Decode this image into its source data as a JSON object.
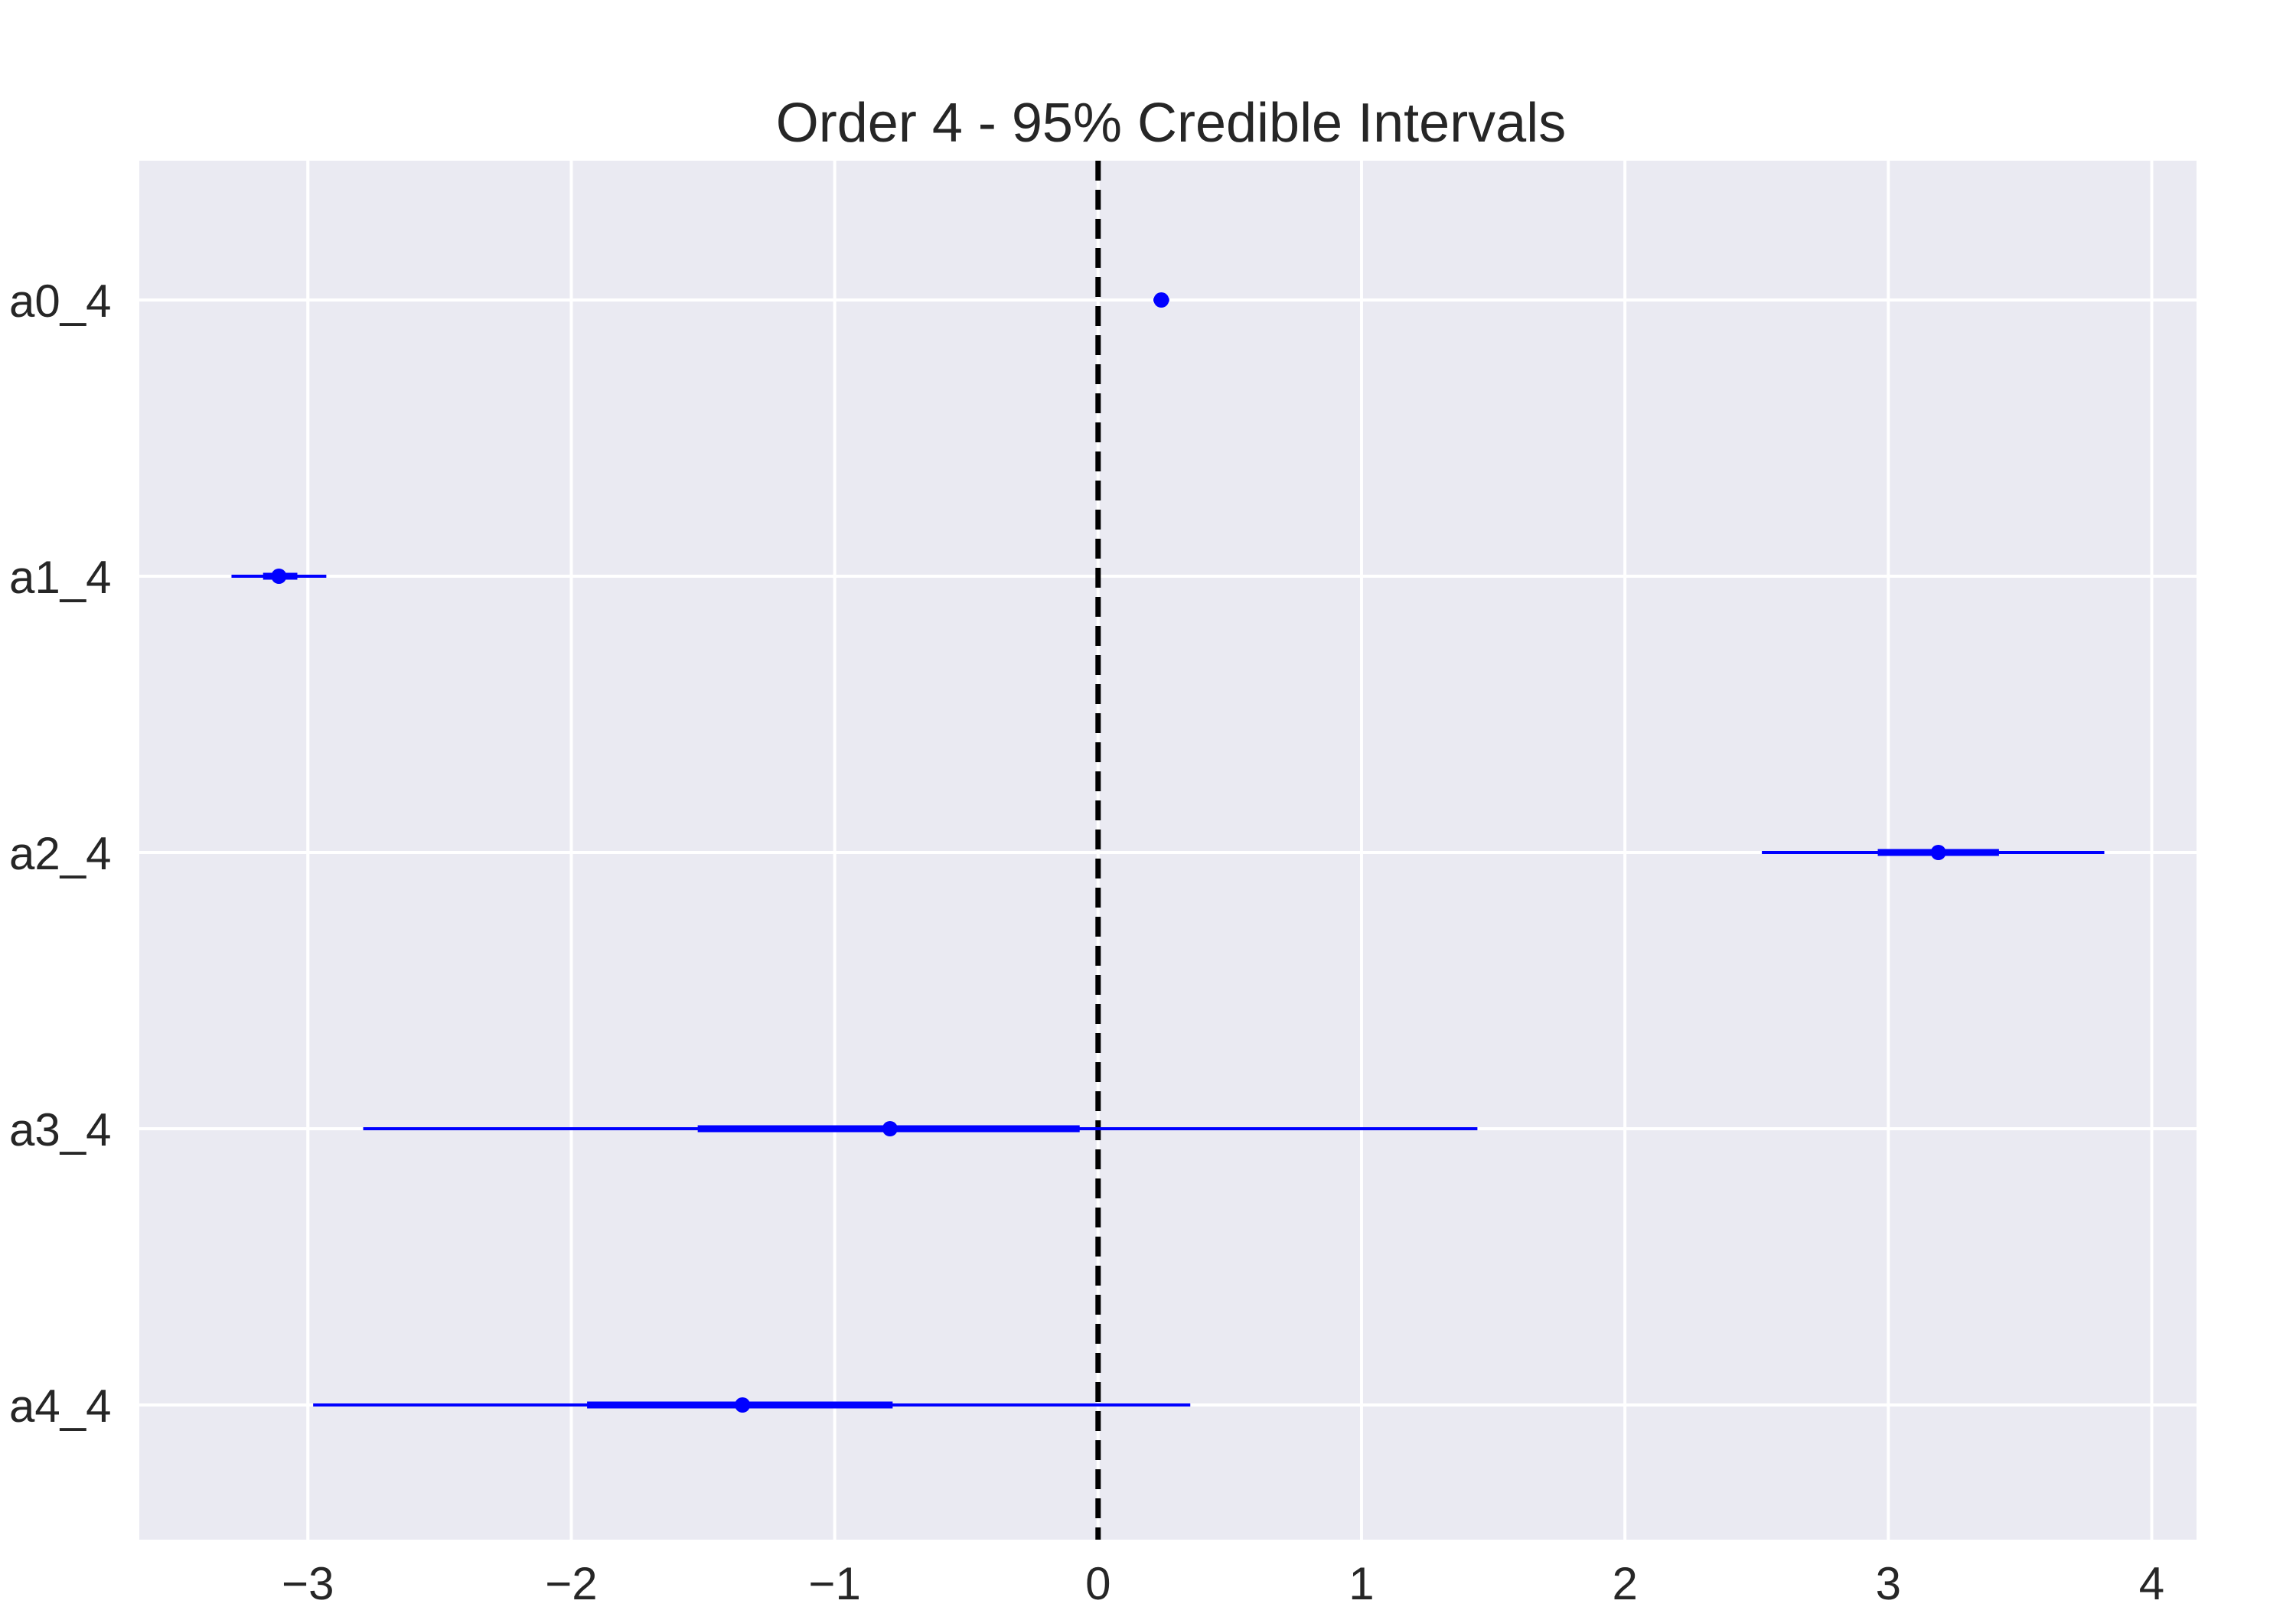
{
  "chart_data": {
    "type": "forest",
    "title": "Order 4 - 95% Credible Intervals",
    "xlabel": "",
    "ylabel": "",
    "xlim": [
      -3.64,
      4.17
    ],
    "xticks": [
      -3,
      -2,
      -1,
      0,
      1,
      2,
      3,
      4
    ],
    "xtick_labels": [
      "−3",
      "−2",
      "−1",
      "0",
      "1",
      "2",
      "3",
      "4"
    ],
    "reference_line": {
      "x": 0,
      "style": "dashed",
      "color": "#000000"
    },
    "grid": true,
    "series": [
      {
        "name": "a0_4",
        "median": 0.24,
        "hdi_50": [
          0.22,
          0.26
        ],
        "hdi_95": [
          0.21,
          0.27
        ]
      },
      {
        "name": "a1_4",
        "median": -3.11,
        "hdi_50": [
          -3.17,
          -3.04
        ],
        "hdi_95": [
          -3.29,
          -2.93
        ]
      },
      {
        "name": "a2_4",
        "median": 3.19,
        "hdi_50": [
          2.96,
          3.42
        ],
        "hdi_95": [
          2.52,
          3.82
        ]
      },
      {
        "name": "a3_4",
        "median": -0.79,
        "hdi_50": [
          -1.52,
          -0.07
        ],
        "hdi_95": [
          -2.79,
          1.44
        ]
      },
      {
        "name": "a4_4",
        "median": -1.35,
        "hdi_50": [
          -1.94,
          -0.78
        ],
        "hdi_95": [
          -2.98,
          0.35
        ]
      }
    ],
    "colors": {
      "interval": "#0000ff",
      "plot_background": "#eaeaf2",
      "grid": "#ffffff",
      "reference_line": "#000000"
    }
  }
}
